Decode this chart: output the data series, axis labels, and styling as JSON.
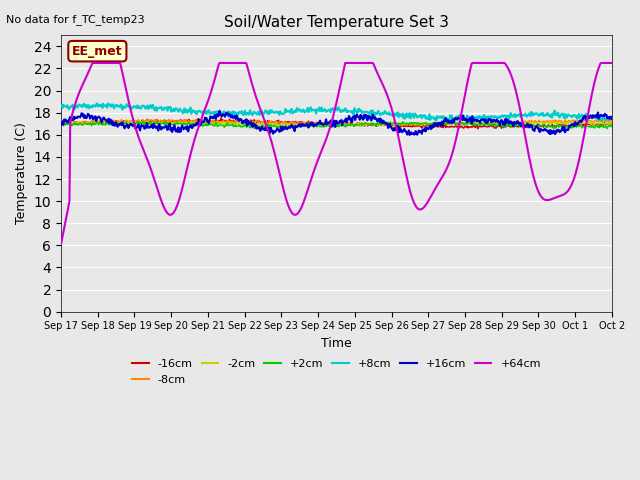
{
  "title": "Soil/Water Temperature Set 3",
  "xlabel": "Time",
  "ylabel": "Temperature (C)",
  "top_left_note": "No data for f_TC_temp23",
  "legend_label": "EE_met",
  "ylim": [
    0,
    25
  ],
  "yticks": [
    0,
    2,
    4,
    6,
    8,
    10,
    12,
    14,
    16,
    18,
    20,
    22,
    24
  ],
  "xtick_labels": [
    "Sep 17",
    "Sep 18",
    "Sep 19",
    "Sep 20",
    "Sep 21",
    "Sep 22",
    "Sep 23",
    "Sep 24",
    "Sep 25",
    "Sep 26",
    "Sep 27",
    "Sep 28",
    "Sep 29",
    "Sep 30",
    "Oct 1",
    "Oct 2"
  ],
  "series_colors": {
    "-16cm": "#cc0000",
    "-8cm": "#ff8800",
    "-2cm": "#cccc00",
    "+2cm": "#00cc00",
    "+8cm": "#00cccc",
    "+16cm": "#0000cc",
    "+64cm": "#cc00cc"
  },
  "bg_color": "#e8e8e8"
}
